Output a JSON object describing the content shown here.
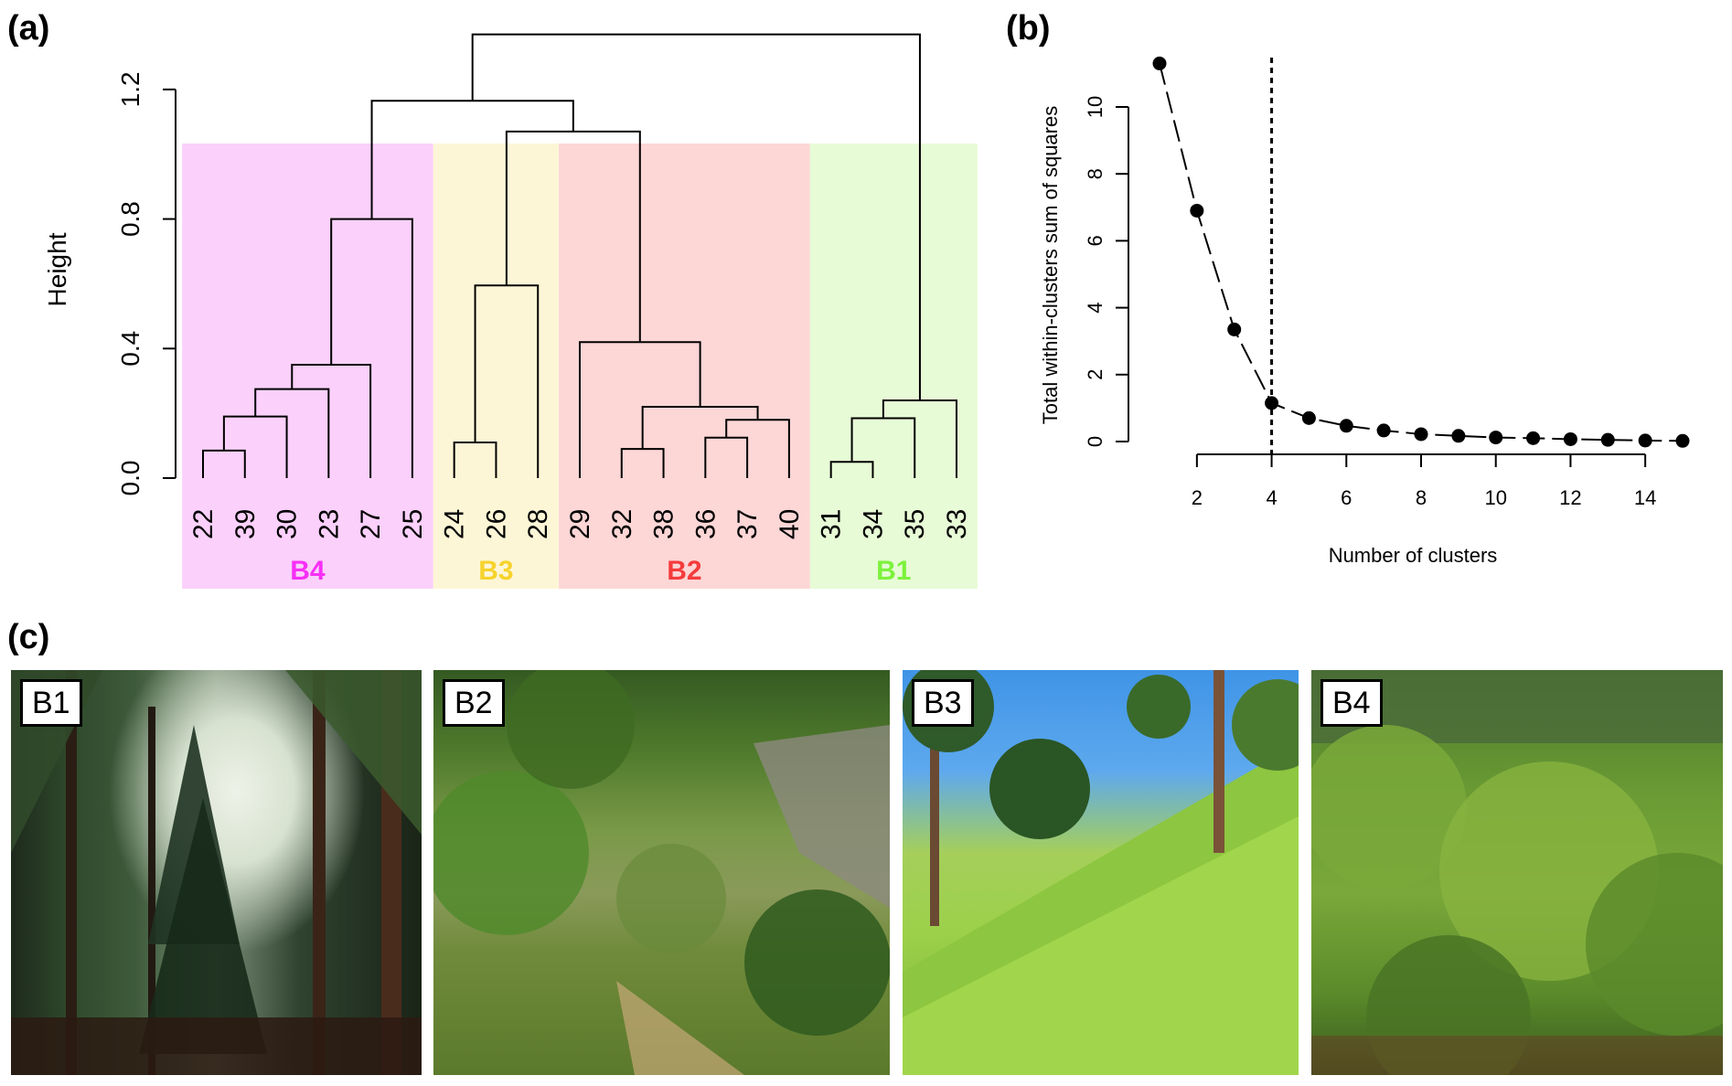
{
  "panels": {
    "a": "(a)",
    "b": "(b)",
    "c": "(c)"
  },
  "chart_data": [
    {
      "type": "dendrogram",
      "ylabel": "Height",
      "ylim": [
        0,
        1.4
      ],
      "yticks": [
        "0.0",
        "0.4",
        "0.8",
        "1.2"
      ],
      "yticks_values": [
        0.0,
        0.4,
        0.8,
        1.2
      ],
      "leaves": [
        "22",
        "39",
        "30",
        "23",
        "27",
        "25",
        "24",
        "26",
        "28",
        "29",
        "32",
        "38",
        "36",
        "37",
        "40",
        "31",
        "34",
        "35",
        "33"
      ],
      "merges": [
        {
          "a": "22",
          "b": "39",
          "height": 0.085
        },
        {
          "a": "m0",
          "b": "30",
          "height": 0.19
        },
        {
          "a": "m1",
          "b": "23",
          "height": 0.275
        },
        {
          "a": "m2",
          "b": "27",
          "height": 0.35
        },
        {
          "a": "m3",
          "b": "25",
          "height": 0.8
        },
        {
          "a": "24",
          "b": "26",
          "height": 0.11
        },
        {
          "a": "m5",
          "b": "28",
          "height": 0.595
        },
        {
          "a": "32",
          "b": "38",
          "height": 0.09
        },
        {
          "a": "36",
          "b": "37",
          "height": 0.125
        },
        {
          "a": "m8",
          "b": "40",
          "height": 0.18
        },
        {
          "a": "m7",
          "b": "m9",
          "height": 0.22
        },
        {
          "a": "29",
          "b": "m10",
          "height": 0.42
        },
        {
          "a": "m6",
          "b": "m11",
          "height": 1.07
        },
        {
          "a": "m4",
          "b": "m12",
          "height": 1.165
        },
        {
          "a": "31",
          "b": "34",
          "height": 0.05
        },
        {
          "a": "m14",
          "b": "35",
          "height": 0.185
        },
        {
          "a": "m15",
          "b": "33",
          "height": 0.24
        },
        {
          "a": "m13",
          "b": "m16",
          "height": 1.37
        }
      ],
      "clusters": [
        {
          "name": "B4",
          "from": 0,
          "to": 5,
          "bg": "#fbd0fb",
          "fg": "#f72ff7"
        },
        {
          "name": "B3",
          "from": 6,
          "to": 8,
          "bg": "#fdf6d6",
          "fg": "#f6d32d"
        },
        {
          "name": "B2",
          "from": 9,
          "to": 14,
          "bg": "#fdd6d6",
          "fg": "#f53c3c"
        },
        {
          "name": "B1",
          "from": 15,
          "to": 18,
          "bg": "#e7fbd6",
          "fg": "#7cf23c"
        }
      ]
    },
    {
      "type": "line",
      "xlabel": "Number of clusters",
      "ylabel": "Total within-clusters sum of squares",
      "x": [
        1,
        2,
        3,
        4,
        5,
        6,
        7,
        8,
        9,
        10,
        11,
        12,
        13,
        14,
        15
      ],
      "y": [
        11.3,
        6.9,
        3.35,
        1.15,
        0.7,
        0.47,
        0.33,
        0.22,
        0.17,
        0.12,
        0.1,
        0.07,
        0.05,
        0.03,
        0.02
      ],
      "xticks": [
        2,
        4,
        6,
        8,
        10,
        12,
        14
      ],
      "yticks": [
        0,
        2,
        4,
        6,
        8,
        10
      ],
      "xlim": [
        1,
        15
      ],
      "ylim": [
        0,
        11.3
      ],
      "vline_x": 4
    }
  ],
  "photos": [
    {
      "label": "B1"
    },
    {
      "label": "B2"
    },
    {
      "label": "B3"
    },
    {
      "label": "B4"
    }
  ]
}
